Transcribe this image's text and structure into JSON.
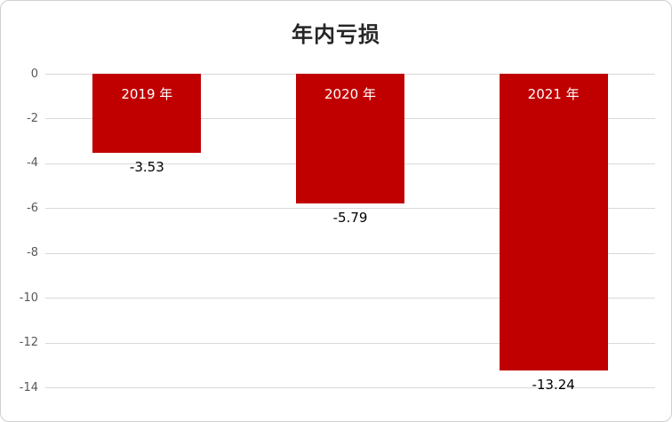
{
  "chart_data": {
    "type": "bar",
    "title": "年内亏损",
    "categories": [
      "2019 年",
      "2020 年",
      "2021 年"
    ],
    "values": [
      -3.53,
      -5.79,
      -13.24
    ],
    "value_labels": [
      "-3.53",
      "-5.79",
      "-13.24"
    ],
    "xlabel": "",
    "ylabel": "",
    "ylim": [
      -14,
      0
    ],
    "yticks": [
      0,
      -2,
      -4,
      -6,
      -8,
      -10,
      -12,
      -14
    ],
    "grid": true,
    "legend": "none",
    "bar_color": "#c00000",
    "category_label_position": "inside-top",
    "category_label_color": "#ffffff",
    "value_label_position": "below-bar",
    "value_label_color": "#000000"
  }
}
